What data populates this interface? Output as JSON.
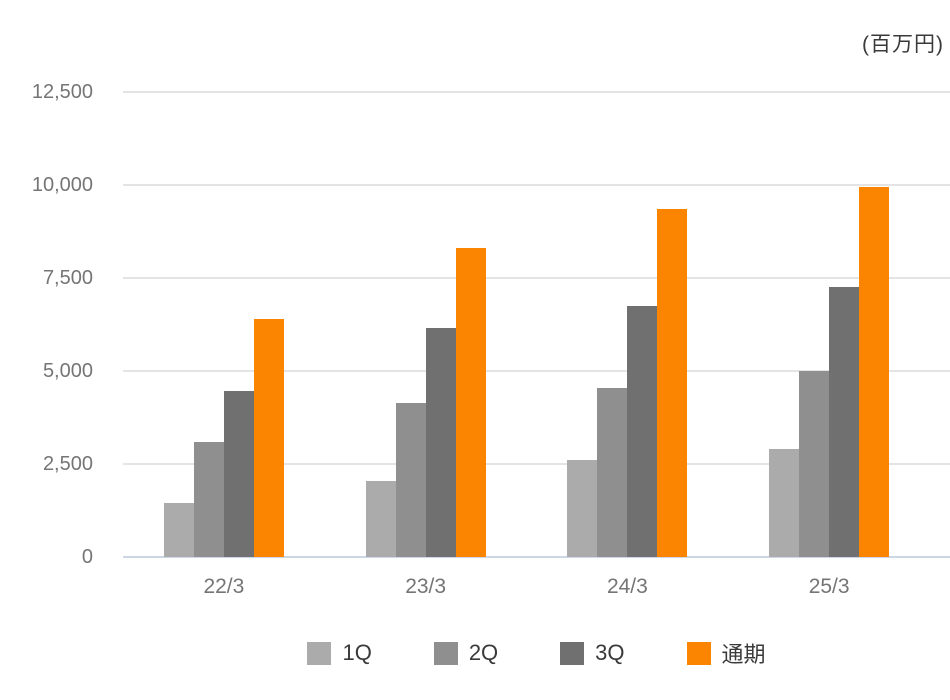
{
  "chart_data": {
    "type": "bar",
    "title": "",
    "unit_label": "(百万円)",
    "categories": [
      "22/3",
      "23/3",
      "24/3",
      "25/3"
    ],
    "series": [
      {
        "name": "1Q",
        "color": "#ABABAB",
        "values": [
          1450,
          2050,
          2600,
          2900
        ]
      },
      {
        "name": "2Q",
        "color": "#8F8F8F",
        "values": [
          3100,
          4150,
          4550,
          5000
        ]
      },
      {
        "name": "3Q",
        "color": "#707070",
        "values": [
          4450,
          6150,
          6750,
          7250
        ]
      },
      {
        "name": "通期",
        "color": "#FB8500",
        "values": [
          6400,
          8300,
          9350,
          9950
        ]
      }
    ],
    "xlabel": "",
    "ylabel": "",
    "ylim": [
      0,
      12500
    ],
    "y_ticks": [
      {
        "value": 0,
        "label": "0"
      },
      {
        "value": 2500,
        "label": "2,500"
      },
      {
        "value": 5000,
        "label": "5,000"
      },
      {
        "value": 7500,
        "label": "7,500"
      },
      {
        "value": 10000,
        "label": "10,000"
      },
      {
        "value": 12500,
        "label": "12,500"
      }
    ],
    "grid": true,
    "legend_position": "bottom"
  },
  "colors": {
    "background": "#ffffff",
    "gridline": "#e4e4e4",
    "axis_line": "#ccd6e4",
    "tick_text": "#757575",
    "label_text": "#3a3a3a"
  }
}
